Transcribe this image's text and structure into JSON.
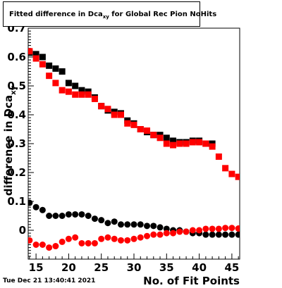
{
  "title": {
    "prefix": "Fitted difference in Dca",
    "subscript": "xy",
    "suffix": " for Global Rec Pion NoHits"
  },
  "datestamp": "Tue Dec 21 13:40:41 2021",
  "colors": {
    "series_black": "#000000",
    "series_red": "#ff0000",
    "frame": "#000000"
  },
  "chart_data": {
    "type": "scatter",
    "xlabel": "No. of Fit Points",
    "ylabel": "difference in Dca",
    "ylabel_subscript": "xy",
    "xlim": [
      13.8,
      46.2
    ],
    "ylim": [
      -0.1,
      0.7
    ],
    "x_ticks": [
      15,
      20,
      25,
      30,
      35,
      40,
      45
    ],
    "y_ticks": [
      0,
      0.1,
      0.2,
      0.3,
      0.4,
      0.5,
      0.6,
      0.7
    ],
    "y_tick_labels": [
      "0",
      "0.1",
      "0.2",
      "0.3",
      "0.4",
      "0.5",
      "0.6",
      "0.7"
    ],
    "grid": false,
    "series": [
      {
        "marker": "square",
        "color": "#000000",
        "x": [
          14,
          15,
          16,
          17,
          18,
          19,
          20,
          21,
          22,
          23,
          24,
          25,
          26,
          27,
          28,
          29,
          30,
          31,
          32,
          33,
          34,
          35,
          36,
          37,
          38,
          39,
          40,
          41,
          42
        ],
        "y": [
          0.615,
          0.61,
          0.6,
          0.57,
          0.56,
          0.55,
          0.51,
          0.5,
          0.485,
          0.48,
          0.46,
          0.43,
          0.415,
          0.41,
          0.405,
          0.38,
          0.37,
          0.35,
          0.34,
          0.33,
          0.33,
          0.32,
          0.31,
          0.305,
          0.305,
          0.31,
          0.31,
          0.3,
          0.3
        ]
      },
      {
        "marker": "square",
        "color": "#ff0000",
        "x": [
          14,
          15,
          16,
          17,
          18,
          19,
          20,
          21,
          22,
          23,
          24,
          25,
          26,
          27,
          28,
          29,
          30,
          31,
          32,
          33,
          34,
          35,
          36,
          37,
          38,
          39,
          40,
          41,
          42,
          43,
          44,
          45,
          46
        ],
        "y": [
          0.62,
          0.595,
          0.575,
          0.535,
          0.51,
          0.485,
          0.48,
          0.47,
          0.47,
          0.47,
          0.455,
          0.43,
          0.42,
          0.4,
          0.4,
          0.37,
          0.365,
          0.35,
          0.345,
          0.33,
          0.32,
          0.3,
          0.295,
          0.3,
          0.3,
          0.305,
          0.305,
          0.3,
          0.29,
          0.255,
          0.215,
          0.195,
          0.185
        ]
      },
      {
        "marker": "circle",
        "color": "#000000",
        "x": [
          14,
          15,
          16,
          17,
          18,
          19,
          20,
          21,
          22,
          23,
          24,
          25,
          26,
          27,
          28,
          29,
          30,
          31,
          32,
          33,
          34,
          35,
          36,
          37,
          38,
          39,
          40,
          41,
          42,
          43,
          44,
          45,
          46
        ],
        "y": [
          0.095,
          0.08,
          0.07,
          0.05,
          0.05,
          0.05,
          0.055,
          0.055,
          0.055,
          0.05,
          0.04,
          0.035,
          0.025,
          0.03,
          0.02,
          0.02,
          0.02,
          0.02,
          0.015,
          0.015,
          0.01,
          0.005,
          0.0,
          0.0,
          -0.005,
          -0.01,
          -0.01,
          -0.015,
          -0.015,
          -0.015,
          -0.015,
          -0.015,
          -0.015
        ]
      },
      {
        "marker": "circle",
        "color": "#ff0000",
        "x": [
          14,
          15,
          16,
          17,
          18,
          19,
          20,
          21,
          22,
          23,
          24,
          25,
          26,
          27,
          28,
          29,
          30,
          31,
          32,
          33,
          34,
          35,
          36,
          37,
          38,
          39,
          40,
          41,
          42,
          43,
          44,
          45,
          46
        ],
        "y": [
          -0.035,
          -0.05,
          -0.05,
          -0.06,
          -0.055,
          -0.04,
          -0.03,
          -0.025,
          -0.045,
          -0.045,
          -0.045,
          -0.03,
          -0.025,
          -0.03,
          -0.035,
          -0.035,
          -0.03,
          -0.025,
          -0.02,
          -0.015,
          -0.015,
          -0.01,
          -0.01,
          -0.005,
          -0.005,
          0.0,
          0.0,
          0.005,
          0.005,
          0.005,
          0.008,
          0.008,
          0.006
        ]
      }
    ]
  }
}
